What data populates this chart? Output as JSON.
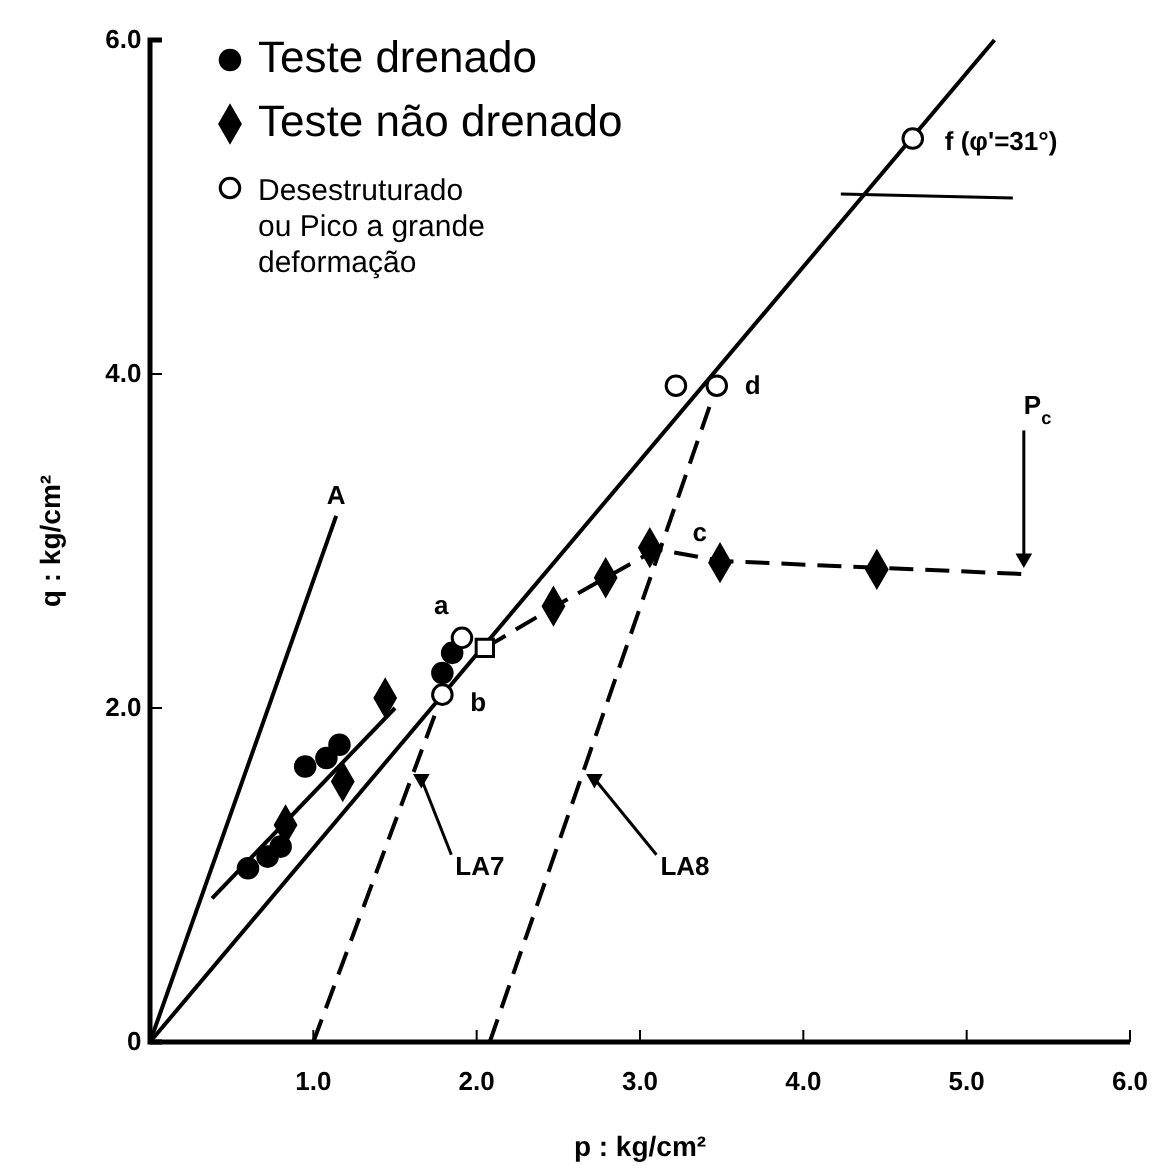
{
  "chart_data": {
    "type": "scatter",
    "xlabel": "p : kg/cm²",
    "ylabel": "q : kg/cm²",
    "xlim": [
      0,
      6
    ],
    "ylim": [
      0,
      6
    ],
    "xticks": [
      {
        "value": 1,
        "label": "1.0"
      },
      {
        "value": 2,
        "label": "2.0"
      },
      {
        "value": 3,
        "label": "3.0"
      },
      {
        "value": 4,
        "label": "4.0"
      },
      {
        "value": 5,
        "label": "5.0"
      },
      {
        "value": 6,
        "label": "6.0"
      }
    ],
    "yticks": [
      {
        "value": 0,
        "label": "0"
      },
      {
        "value": 2,
        "label": "2.0"
      },
      {
        "value": 4,
        "label": "4.0"
      },
      {
        "value": 6,
        "label": "6.0"
      }
    ],
    "grid": false,
    "legend": "top left",
    "series": [
      {
        "type": "line",
        "color": "#000000",
        "marker": "none",
        "line_style": "solid",
        "x": [
          0,
          5.17
        ],
        "values": [
          0,
          6.0
        ]
      },
      {
        "type": "line",
        "color": "#000000",
        "marker": "none",
        "line_style": "solid",
        "x": [
          0,
          1.14
        ],
        "values": [
          0,
          3.15
        ]
      },
      {
        "type": "line",
        "color": "#000000",
        "marker": "none",
        "line_style": "solid",
        "x": [
          0.38,
          1.5
        ],
        "values": [
          0.86,
          2.0
        ]
      },
      {
        "type": "line",
        "color": "#000000",
        "marker": "none",
        "line_style": "dashed",
        "x": [
          2.05,
          2.5,
          3.1,
          3.5,
          5.4
        ],
        "values": [
          2.36,
          2.62,
          2.95,
          2.88,
          2.8
        ]
      },
      {
        "type": "line",
        "color": "#000000",
        "marker": "none",
        "line_style": "dashed",
        "x": [
          1.0,
          1.79
        ],
        "values": [
          0,
          2.08
        ]
      },
      {
        "type": "line",
        "color": "#000000",
        "marker": "none",
        "line_style": "dashed",
        "x": [
          2.08,
          3.47
        ],
        "values": [
          0,
          3.93
        ]
      },
      {
        "name": "Teste drenado",
        "color": "#000000",
        "marker": "circle",
        "x": [
          0.6,
          0.72,
          0.8,
          0.95,
          1.08,
          1.16,
          1.79,
          1.85
        ],
        "values": [
          1.04,
          1.11,
          1.17,
          1.65,
          1.7,
          1.78,
          2.21,
          2.33
        ]
      },
      {
        "name": "Teste não drenado",
        "color": "#000000",
        "marker": "diamond",
        "x": [
          0.83,
          1.18,
          1.44,
          2.47,
          2.79,
          3.06,
          3.49,
          4.45
        ],
        "values": [
          1.3,
          1.56,
          2.06,
          2.61,
          2.78,
          2.96,
          2.87,
          2.83
        ]
      },
      {
        "name": "Desestruturado ou Pico a grande deformação",
        "color": "#ffffff",
        "marker": "circle",
        "x": [
          4.67,
          3.22,
          3.47,
          1.91,
          1.79
        ],
        "values": [
          5.41,
          3.93,
          3.93,
          2.42,
          2.08
        ]
      },
      {
        "color": "#ffffff",
        "marker": "square",
        "x": [
          2.05
        ],
        "values": [
          2.36
        ]
      }
    ],
    "annotations": [
      {
        "text": "a",
        "x": 1.91,
        "y": 2.42
      },
      {
        "text": "b",
        "x": 1.79,
        "y": 2.08
      },
      {
        "text": "c",
        "x": 3.15,
        "y": 2.95
      },
      {
        "text": "d",
        "x": 3.47,
        "y": 3.93
      },
      {
        "text": "A",
        "x": 1.14,
        "y": 3.15
      },
      {
        "text": "f (φ'=31°)",
        "x": 4.45,
        "y": 5.15
      },
      {
        "text": "LA7",
        "x": 1.6,
        "y": 1.6
      },
      {
        "text": "LA8",
        "x": 2.66,
        "y": 1.6
      },
      {
        "text": "P$_{c}$",
        "x": 5.35,
        "y": 2.8
      }
    ]
  }
}
